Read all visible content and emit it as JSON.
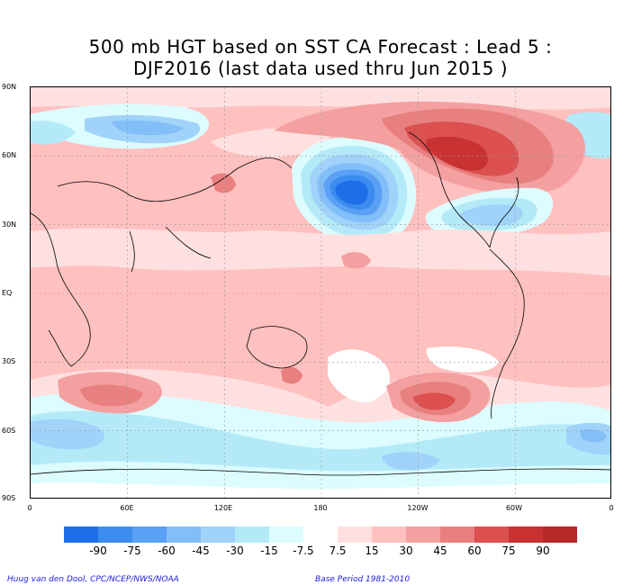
{
  "title_line1": "500 mb HGT based on SST CA Forecast : Lead 5 :",
  "title_line2": "DJF2016 (last data used thru Jun 2015 )",
  "lat_labels": [
    "90N",
    "60N",
    "30N",
    "EQ",
    "30S",
    "60S",
    "90S"
  ],
  "lon_labels": [
    "0",
    "60E",
    "120E",
    "180",
    "120W",
    "60W",
    "0"
  ],
  "colorbar": {
    "labels": [
      "-90",
      "-75",
      "-60",
      "-45",
      "-30",
      "-15",
      "-7.5",
      "7.5",
      "15",
      "30",
      "45",
      "60",
      "75",
      "90"
    ],
    "colors": [
      "#1e6ee8",
      "#3c8cf0",
      "#5aa0f5",
      "#82bef8",
      "#a0d2fa",
      "#b4eaf8",
      "#dcfcff",
      "#ffffff",
      "#ffe0e0",
      "#ffc0c0",
      "#f4a0a0",
      "#e88080",
      "#dc5050",
      "#c83232",
      "#b42828"
    ]
  },
  "footer": {
    "credit": "Huug van den Dool, CPC/NCEP/NWS/NOAA",
    "base_period": "Base Period 1981-2010"
  }
}
